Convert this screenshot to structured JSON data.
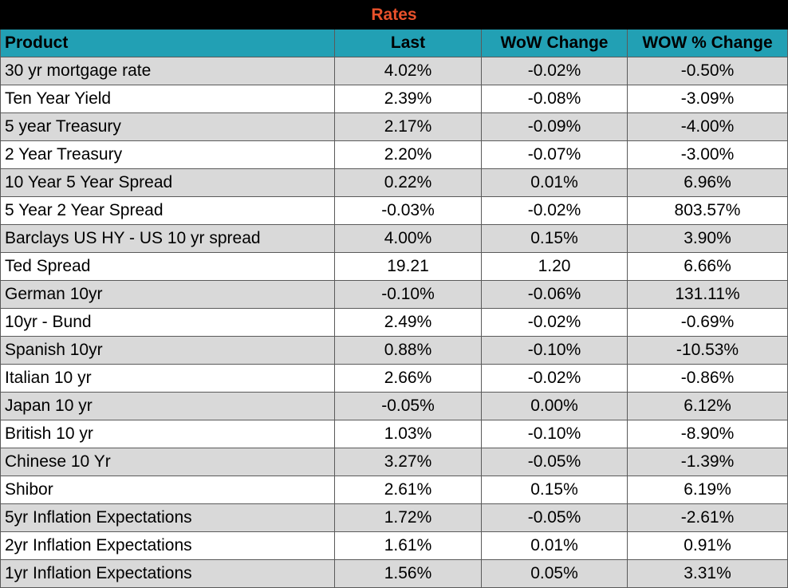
{
  "title": "Rates",
  "header": [
    "Product",
    "Last",
    "WoW Change",
    "WOW % Change"
  ],
  "rows": [
    [
      "30 yr mortgage rate",
      "4.02%",
      "-0.02%",
      "-0.50%"
    ],
    [
      "Ten Year Yield",
      "2.39%",
      "-0.08%",
      "-3.09%"
    ],
    [
      "5 year Treasury",
      "2.17%",
      "-0.09%",
      "-4.00%"
    ],
    [
      "2 Year Treasury",
      "2.20%",
      "-0.07%",
      "-3.00%"
    ],
    [
      "10 Year 5 Year Spread",
      "0.22%",
      "0.01%",
      "6.96%"
    ],
    [
      "5 Year 2 Year Spread",
      "-0.03%",
      "-0.02%",
      "803.57%"
    ],
    [
      "Barclays US HY - US 10 yr spread",
      "4.00%",
      "0.15%",
      "3.90%"
    ],
    [
      "Ted Spread",
      "19.21",
      "1.20",
      "6.66%"
    ],
    [
      "German 10yr",
      "-0.10%",
      "-0.06%",
      "131.11%"
    ],
    [
      "10yr - Bund",
      "2.49%",
      "-0.02%",
      "-0.69%"
    ],
    [
      "Spanish 10yr",
      "0.88%",
      "-0.10%",
      "-10.53%"
    ],
    [
      "Italian 10 yr",
      "2.66%",
      "-0.02%",
      "-0.86%"
    ],
    [
      "Japan 10 yr",
      "-0.05%",
      "0.00%",
      "6.12%"
    ],
    [
      "British 10 yr",
      "1.03%",
      "-0.10%",
      "-8.90%"
    ],
    [
      "Chinese 10 Yr",
      "3.27%",
      "-0.05%",
      "-1.39%"
    ],
    [
      "Shibor",
      "2.61%",
      "0.15%",
      "6.19%"
    ],
    [
      "5yr Inflation Expectations",
      "1.72%",
      "-0.05%",
      "-2.61%"
    ],
    [
      "2yr Inflation Expectations",
      "1.61%",
      "0.01%",
      "0.91%"
    ],
    [
      "1yr Inflation Expectations",
      "1.56%",
      "0.05%",
      "3.31%"
    ]
  ]
}
